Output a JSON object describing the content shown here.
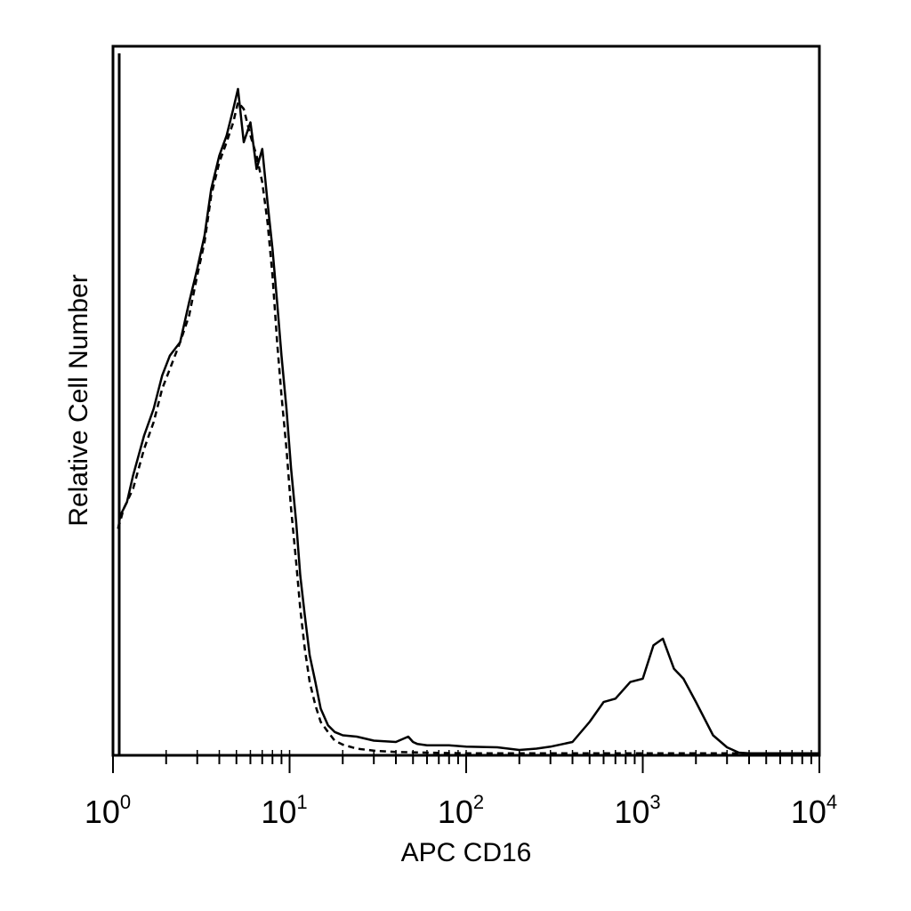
{
  "chart_data": {
    "type": "line",
    "title": "",
    "xlabel": "APC CD16",
    "ylabel": "Relative Cell Number",
    "x_scale": "log",
    "xlim": [
      1,
      10000
    ],
    "ylim": [
      0,
      1
    ],
    "grid": false,
    "x_ticks": [
      {
        "base": "10",
        "exp": "0",
        "value": 1
      },
      {
        "base": "10",
        "exp": "1",
        "value": 10
      },
      {
        "base": "10",
        "exp": "2",
        "value": 100
      },
      {
        "base": "10",
        "exp": "3",
        "value": 1000
      },
      {
        "base": "10",
        "exp": "4",
        "value": 10000
      }
    ],
    "series": [
      {
        "style": "solid",
        "color": "#000000",
        "x": [
          1.07,
          1.1,
          1.2,
          1.3,
          1.5,
          1.7,
          1.9,
          2.1,
          2.4,
          2.7,
          3.0,
          3.3,
          3.6,
          4.0,
          4.4,
          4.8,
          5.1,
          5.5,
          6.0,
          6.5,
          7.0,
          7.5,
          8.0,
          8.5,
          9.0,
          9.6,
          10.2,
          10.9,
          11.5,
          12.2,
          13.0,
          14.0,
          15.0,
          16.5,
          18.0,
          20,
          24,
          30,
          40,
          47,
          50,
          53,
          60,
          80,
          100,
          150,
          200,
          250,
          300,
          400,
          500,
          600,
          700,
          850,
          1000,
          1150,
          1300,
          1500,
          1700,
          2000,
          2500,
          3000,
          3500,
          4000,
          6000,
          10000
        ],
        "y": [
          0.34,
          0.36,
          0.38,
          0.42,
          0.48,
          0.52,
          0.57,
          0.6,
          0.62,
          0.68,
          0.73,
          0.78,
          0.85,
          0.9,
          0.93,
          0.97,
          1.0,
          0.92,
          0.95,
          0.88,
          0.91,
          0.83,
          0.76,
          0.68,
          0.6,
          0.52,
          0.43,
          0.35,
          0.27,
          0.21,
          0.15,
          0.11,
          0.07,
          0.045,
          0.035,
          0.03,
          0.028,
          0.022,
          0.02,
          0.028,
          0.02,
          0.017,
          0.015,
          0.015,
          0.013,
          0.012,
          0.008,
          0.01,
          0.013,
          0.02,
          0.05,
          0.08,
          0.085,
          0.11,
          0.115,
          0.165,
          0.175,
          0.13,
          0.115,
          0.08,
          0.03,
          0.012,
          0.004,
          0.003,
          0.003,
          0.003
        ]
      },
      {
        "style": "dashed",
        "color": "#000000",
        "x": [
          1.07,
          1.15,
          1.3,
          1.5,
          1.7,
          1.9,
          2.1,
          2.4,
          2.7,
          3.0,
          3.3,
          3.6,
          4.0,
          4.4,
          4.8,
          5.1,
          5.5,
          6.0,
          6.5,
          7.0,
          7.5,
          8.0,
          8.5,
          9.0,
          9.6,
          10.2,
          10.9,
          11.5,
          12.2,
          13.0,
          14.0,
          15.0,
          16.5,
          18.0,
          20,
          24,
          30,
          40,
          60,
          100,
          200,
          500,
          1000,
          2000,
          5000,
          10000
        ],
        "y": [
          0.34,
          0.37,
          0.4,
          0.46,
          0.5,
          0.55,
          0.58,
          0.62,
          0.66,
          0.72,
          0.77,
          0.84,
          0.89,
          0.92,
          0.95,
          0.98,
          0.97,
          0.93,
          0.9,
          0.86,
          0.8,
          0.72,
          0.62,
          0.54,
          0.46,
          0.37,
          0.29,
          0.22,
          0.16,
          0.11,
          0.075,
          0.05,
          0.035,
          0.022,
          0.016,
          0.01,
          0.007,
          0.005,
          0.004,
          0.003,
          0.003,
          0.003,
          0.003,
          0.003,
          0.003,
          0.003
        ]
      }
    ]
  }
}
